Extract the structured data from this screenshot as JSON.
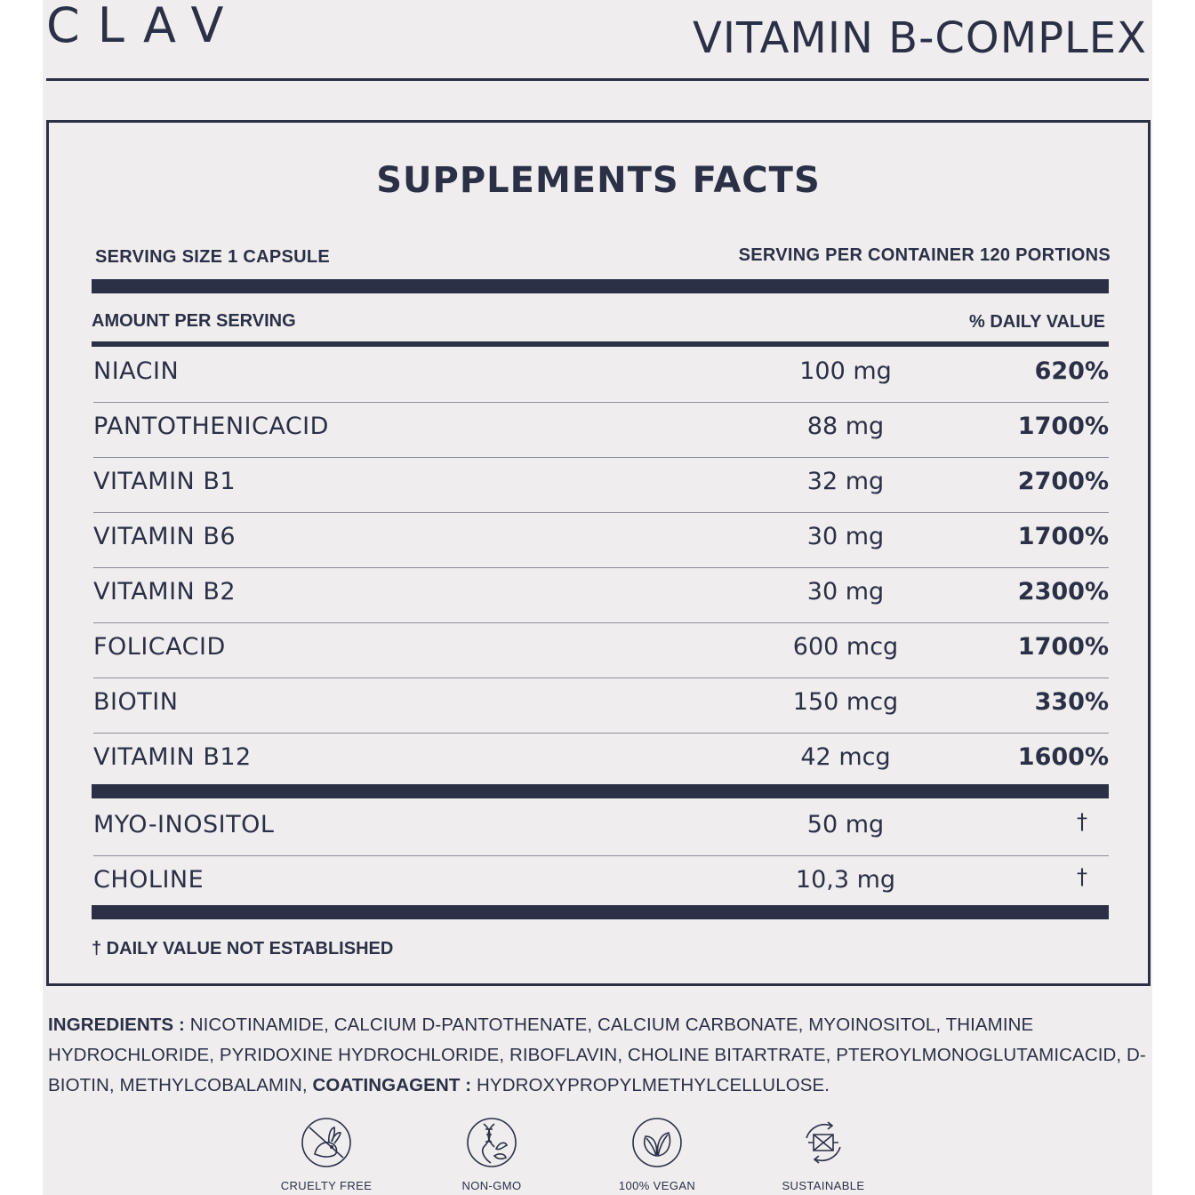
{
  "header": {
    "brand": "CLAV",
    "product": "VITAMIN B-COMPLEX"
  },
  "facts": {
    "title": "SUPPLEMENTS FACTS",
    "serving_size": "SERVING SIZE 1 CAPSULE",
    "servings_per_container": "SERVING PER CONTAINER 120 PORTIONS",
    "amount_header": "AMOUNT PER SERVING",
    "dv_header": "% DAILY VALUE",
    "rows": [
      {
        "name": "NIACIN",
        "amount": "100 mg",
        "dv": "620%"
      },
      {
        "name": "PANTOTHENICACID",
        "amount": "88 mg",
        "dv": "1700%"
      },
      {
        "name": "VITAMIN B1",
        "amount": "32 mg",
        "dv": "2700%"
      },
      {
        "name": "VITAMIN B6",
        "amount": "30 mg",
        "dv": "1700%"
      },
      {
        "name": "VITAMIN B2",
        "amount": "30 mg",
        "dv": "2300%"
      },
      {
        "name": "FOLICACID",
        "amount": "600 mcg",
        "dv": "1700%"
      },
      {
        "name": "BIOTIN",
        "amount": "150 mcg",
        "dv": "330%"
      },
      {
        "name": "VITAMIN B12",
        "amount": "42 mcg",
        "dv": "1600%"
      }
    ],
    "other_rows": [
      {
        "name": "MYO-INOSITOL",
        "amount": "50 mg",
        "dv": "†"
      },
      {
        "name": "CHOLINE",
        "amount": "10,3 mg",
        "dv": "†"
      }
    ],
    "footnote": "† DAILY VALUE NOT ESTABLISHED"
  },
  "ingredients": {
    "label": "INGREDIENTS :",
    "text": " NICOTINAMIDE, CALCIUM D-PANTOTHENATE, CALCIUM CARBONATE, MYOINOSITOL, THIAMINE HYDROCHLORIDE, PYRIDOXINE HYDROCHLORIDE, RIBOFLAVIN, CHOLINE BITARTRATE, PTEROYLMONOGLUTAMICACID, D-BIOTIN, METHYLCOBALAMIN, ",
    "coating_label": "COATINGAGENT :",
    "coating_text": " HYDROXYPROPYLMETHYLCELLULOSE."
  },
  "badges": [
    {
      "label": "CRUELTY FREE",
      "icon": "rabbit-icon"
    },
    {
      "label": "NON-GMO",
      "icon": "dna-icon"
    },
    {
      "label": "100% VEGAN",
      "icon": "leaf-icon"
    },
    {
      "label": "SUSTAINABLE",
      "icon": "recycle-icon"
    }
  ],
  "colors": {
    "ink": "#2b3047",
    "background": "#efedee",
    "rule": "#8a8d9b"
  }
}
